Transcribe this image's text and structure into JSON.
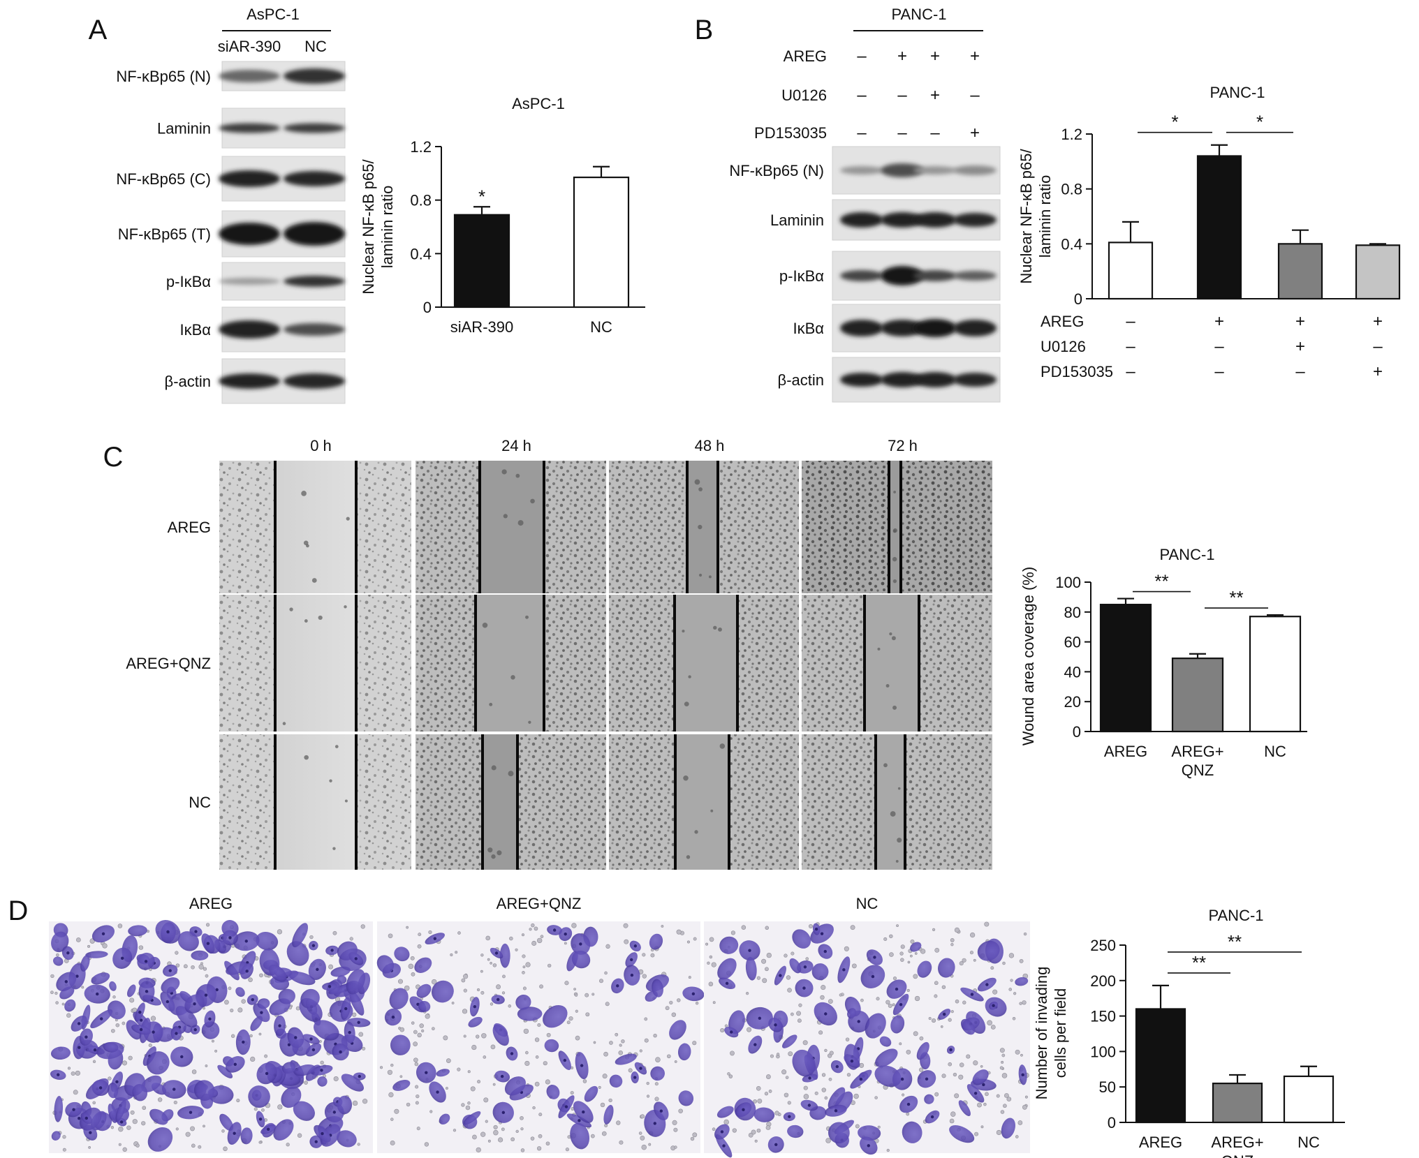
{
  "panelA": {
    "letter": "A",
    "cell_line": "AsPC-1",
    "lanes": [
      "siAR-390",
      "NC"
    ],
    "blot_labels": [
      "NF-κBp65 (N)",
      "Laminin",
      "NF-κBp65 (C)",
      "NF-κBp65 (T)",
      "p-IκBα",
      "IκBα",
      "β-actin"
    ],
    "sig": "*"
  },
  "panelB": {
    "letter": "B",
    "cell_line": "PANC-1",
    "treatments": [
      {
        "name": "AREG",
        "signs": [
          "–",
          "+",
          "+",
          "+"
        ]
      },
      {
        "name": "U0126",
        "signs": [
          "–",
          "–",
          "+",
          "–"
        ]
      },
      {
        "name": "PD153035",
        "signs": [
          "–",
          "–",
          "–",
          "+"
        ]
      }
    ],
    "blot_labels": [
      "NF-κBp65 (N)",
      "Laminin",
      "p-IκBα",
      "IκBα",
      "β-actin"
    ],
    "sig": [
      "*",
      "*"
    ]
  },
  "panelC": {
    "letter": "C",
    "timepoints": [
      "0 h",
      "24 h",
      "48 h",
      "72 h"
    ],
    "rows": [
      "AREG",
      "AREG+QNZ",
      "NC"
    ],
    "sig": [
      "**",
      "**"
    ]
  },
  "panelD": {
    "letter": "D",
    "columns": [
      "AREG",
      "AREG+QNZ",
      "NC"
    ],
    "sig": [
      "**",
      "**"
    ]
  },
  "chart_data": [
    {
      "id": "A",
      "type": "bar",
      "title": "AsPC-1",
      "categories": [
        "siAR-390",
        "NC"
      ],
      "values": [
        0.69,
        0.97
      ],
      "errors": [
        0.06,
        0.08
      ],
      "colors": [
        "#111111",
        "#ffffff"
      ],
      "ylabel": "Nuclear NF-κB p65/ laminin ratio",
      "ylabel_lines": [
        "Nuclear NF-κB p65/",
        "laminin ratio"
      ],
      "ylim": [
        0,
        1.2
      ],
      "yticks": [
        0,
        0.4,
        0.8,
        1.2
      ],
      "ytick_labels": [
        "0",
        "0.4",
        "0.8",
        "1.2"
      ],
      "annotations": [
        {
          "text": "*",
          "bar": 0
        }
      ]
    },
    {
      "id": "B",
      "type": "bar",
      "title": "PANC-1",
      "categories": [
        "",
        "",
        "",
        ""
      ],
      "values": [
        0.41,
        1.04,
        0.4,
        0.39
      ],
      "errors": [
        0.15,
        0.08,
        0.1,
        0.01
      ],
      "colors": [
        "#ffffff",
        "#111111",
        "#808080",
        "#c4c4c4"
      ],
      "ylabel": "Nuclear NF-κB p65/ laminin ratio",
      "ylabel_lines": [
        "Nuclear NF-κB p65/",
        "laminin ratio"
      ],
      "ylim": [
        0,
        1.2
      ],
      "yticks": [
        0,
        0.4,
        0.8,
        1.2
      ],
      "ytick_labels": [
        "0",
        "0.4",
        "0.8",
        "1.2"
      ],
      "condition_rows": [
        {
          "name": "AREG",
          "signs": [
            "–",
            "+",
            "+",
            "+"
          ]
        },
        {
          "name": "U0126",
          "signs": [
            "–",
            "–",
            "+",
            "–"
          ]
        },
        {
          "name": "PD153035",
          "signs": [
            "–",
            "–",
            "–",
            "+"
          ]
        }
      ],
      "comparisons": [
        {
          "from": 0,
          "to": 1,
          "text": "*"
        },
        {
          "from": 1,
          "to": 2,
          "text": "*"
        }
      ]
    },
    {
      "id": "C",
      "type": "bar",
      "title": "PANC-1",
      "categories": [
        "AREG",
        "AREG+\nQNZ",
        "NC"
      ],
      "values": [
        85,
        49,
        77
      ],
      "errors": [
        4,
        3,
        1
      ],
      "colors": [
        "#111111",
        "#808080",
        "#ffffff"
      ],
      "ylabel": "Wound area coverage (%)",
      "ylabel_lines": [
        "Wound area coverage (%)"
      ],
      "ylim": [
        0,
        100
      ],
      "yticks": [
        0,
        20,
        40,
        60,
        80,
        100
      ],
      "ytick_labels": [
        "0",
        "20",
        "40",
        "60",
        "80",
        "100"
      ],
      "comparisons": [
        {
          "from": 0,
          "to": 1,
          "text": "**"
        },
        {
          "from": 1,
          "to": 2,
          "text": "**"
        }
      ]
    },
    {
      "id": "D",
      "type": "bar",
      "title": "PANC-1",
      "categories": [
        "AREG",
        "AREG+\nQNZ",
        "NC"
      ],
      "values": [
        160,
        55,
        65
      ],
      "errors": [
        33,
        12,
        14
      ],
      "colors": [
        "#111111",
        "#808080",
        "#ffffff"
      ],
      "ylabel": "Number of invading cells per field",
      "ylabel_lines": [
        "Number of invading",
        "cells per field"
      ],
      "ylim": [
        0,
        250
      ],
      "yticks": [
        0,
        50,
        100,
        150,
        200,
        250
      ],
      "ytick_labels": [
        "0",
        "50",
        "100",
        "150",
        "200",
        "250"
      ],
      "comparisons": [
        {
          "from": 0,
          "to": 1,
          "text": "**"
        },
        {
          "from": 0,
          "to": 2,
          "text": "**"
        }
      ]
    }
  ]
}
